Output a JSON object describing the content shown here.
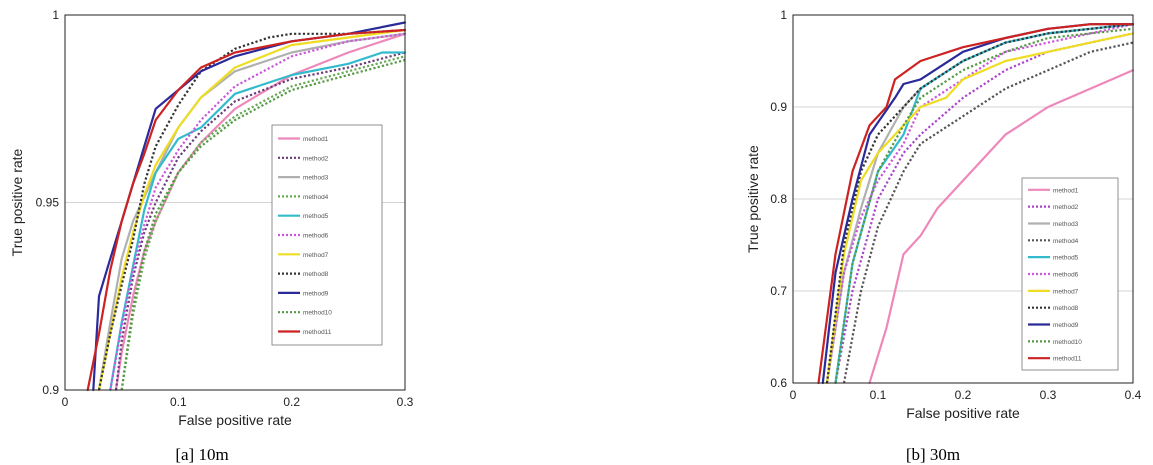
{
  "chart_data": [
    {
      "type": "line",
      "panel": "a",
      "caption": "[a] 10m",
      "xlabel": "False positive rate",
      "ylabel": "True positive rate",
      "xlim": [
        0,
        0.3
      ],
      "ylim": [
        0.9,
        1
      ],
      "xticks": [
        0,
        0.1,
        0.2,
        0.3
      ],
      "xtick_labels": [
        "0",
        "0.1",
        "0.2",
        "0.3"
      ],
      "yticks": [
        0.9,
        0.95,
        1
      ],
      "ytick_labels": [
        "0.9",
        "0.95",
        "1"
      ],
      "grid": "horizontal",
      "legend": "right",
      "series": [
        {
          "name": "method1",
          "color": "#ee88bb",
          "dash": "solid",
          "x": [
            0.045,
            0.05,
            0.06,
            0.07,
            0.08,
            0.1,
            0.12,
            0.15,
            0.2,
            0.25,
            0.3
          ],
          "y": [
            0.9,
            0.91,
            0.925,
            0.937,
            0.945,
            0.958,
            0.966,
            0.975,
            0.984,
            0.99,
            0.995
          ]
        },
        {
          "name": "method2",
          "color": "#6a3d7a",
          "dash": "dotted",
          "x": [
            0.045,
            0.05,
            0.06,
            0.07,
            0.08,
            0.1,
            0.12,
            0.15,
            0.2,
            0.25,
            0.3
          ],
          "y": [
            0.9,
            0.913,
            0.93,
            0.942,
            0.95,
            0.962,
            0.969,
            0.977,
            0.983,
            0.986,
            0.99
          ]
        },
        {
          "name": "method3",
          "color": "#b0b0b0",
          "dash": "solid",
          "x": [
            0.03,
            0.04,
            0.05,
            0.06,
            0.08,
            0.1,
            0.12,
            0.15,
            0.2,
            0.25,
            0.3
          ],
          "y": [
            0.9,
            0.918,
            0.935,
            0.945,
            0.958,
            0.97,
            0.978,
            0.985,
            0.99,
            0.993,
            0.995
          ]
        },
        {
          "name": "method4",
          "color": "#66aa55",
          "dash": "dotted",
          "x": [
            0.05,
            0.06,
            0.07,
            0.08,
            0.1,
            0.12,
            0.15,
            0.2,
            0.25,
            0.3
          ],
          "y": [
            0.9,
            0.92,
            0.935,
            0.945,
            0.958,
            0.966,
            0.973,
            0.981,
            0.985,
            0.989
          ]
        },
        {
          "name": "method5",
          "color": "#33bbcc",
          "dash": "solid",
          "x": [
            0.04,
            0.05,
            0.06,
            0.07,
            0.08,
            0.1,
            0.12,
            0.15,
            0.2,
            0.25,
            0.28,
            0.3
          ],
          "y": [
            0.9,
            0.918,
            0.933,
            0.948,
            0.958,
            0.967,
            0.97,
            0.979,
            0.984,
            0.987,
            0.99,
            0.99
          ]
        },
        {
          "name": "method6",
          "color": "#cc55dd",
          "dash": "dotted",
          "x": [
            0.04,
            0.05,
            0.06,
            0.07,
            0.08,
            0.1,
            0.12,
            0.15,
            0.2,
            0.25,
            0.3
          ],
          "y": [
            0.9,
            0.917,
            0.932,
            0.944,
            0.954,
            0.964,
            0.972,
            0.981,
            0.989,
            0.993,
            0.995
          ]
        },
        {
          "name": "method7",
          "color": "#eedd22",
          "dash": "solid",
          "x": [
            0.03,
            0.04,
            0.05,
            0.06,
            0.07,
            0.08,
            0.1,
            0.12,
            0.15,
            0.2,
            0.25,
            0.3
          ],
          "y": [
            0.9,
            0.915,
            0.93,
            0.942,
            0.952,
            0.96,
            0.97,
            0.978,
            0.986,
            0.992,
            0.994,
            0.996
          ]
        },
        {
          "name": "method8",
          "color": "#333333",
          "dash": "dotted",
          "x": [
            0.03,
            0.04,
            0.05,
            0.06,
            0.07,
            0.08,
            0.1,
            0.12,
            0.15,
            0.18,
            0.2,
            0.25,
            0.3
          ],
          "y": [
            0.9,
            0.915,
            0.928,
            0.94,
            0.955,
            0.965,
            0.976,
            0.985,
            0.991,
            0.994,
            0.995,
            0.995,
            0.996
          ]
        },
        {
          "name": "method9",
          "color": "#2a2a99",
          "dash": "solid",
          "x": [
            0.025,
            0.03,
            0.04,
            0.05,
            0.06,
            0.07,
            0.08,
            0.1,
            0.12,
            0.15,
            0.2,
            0.25,
            0.3
          ],
          "y": [
            0.9,
            0.925,
            0.935,
            0.945,
            0.955,
            0.965,
            0.975,
            0.98,
            0.985,
            0.989,
            0.993,
            0.995,
            0.998
          ]
        },
        {
          "name": "method10",
          "color": "#559944",
          "dash": "dotted",
          "x": [
            0.05,
            0.06,
            0.07,
            0.08,
            0.1,
            0.12,
            0.15,
            0.2,
            0.25,
            0.3
          ],
          "y": [
            0.9,
            0.922,
            0.937,
            0.947,
            0.958,
            0.965,
            0.972,
            0.98,
            0.984,
            0.988
          ]
        },
        {
          "name": "method11",
          "color": "#cc2222",
          "dash": "solid",
          "x": [
            0.02,
            0.03,
            0.04,
            0.05,
            0.06,
            0.07,
            0.08,
            0.1,
            0.12,
            0.15,
            0.2,
            0.25,
            0.3
          ],
          "y": [
            0.9,
            0.915,
            0.932,
            0.945,
            0.955,
            0.963,
            0.972,
            0.98,
            0.986,
            0.99,
            0.993,
            0.995,
            0.996
          ]
        }
      ]
    },
    {
      "type": "line",
      "panel": "b",
      "caption": "[b] 30m",
      "xlabel": "False positive rate",
      "ylabel": "True positive rate",
      "xlim": [
        0,
        0.4
      ],
      "ylim": [
        0.6,
        1
      ],
      "xticks": [
        0,
        0.1,
        0.2,
        0.3,
        0.4
      ],
      "xtick_labels": [
        "0",
        "0.1",
        "0.2",
        "0.3",
        "0.4"
      ],
      "yticks": [
        0.6,
        0.7,
        0.8,
        0.9,
        1
      ],
      "ytick_labels": [
        "0.6",
        "0.7",
        "0.8",
        "0.9",
        "1"
      ],
      "grid": "horizontal",
      "legend": "right",
      "series": [
        {
          "name": "method1",
          "color": "#ee88bb",
          "dash": "solid",
          "x": [
            0.09,
            0.11,
            0.13,
            0.15,
            0.17,
            0.2,
            0.25,
            0.3,
            0.35,
            0.4
          ],
          "y": [
            0.6,
            0.66,
            0.74,
            0.76,
            0.79,
            0.82,
            0.87,
            0.9,
            0.92,
            0.94
          ]
        },
        {
          "name": "method2",
          "color": "#aa44cc",
          "dash": "dotted",
          "x": [
            0.05,
            0.07,
            0.1,
            0.13,
            0.15,
            0.2,
            0.25,
            0.3,
            0.35,
            0.4
          ],
          "y": [
            0.6,
            0.7,
            0.8,
            0.85,
            0.87,
            0.91,
            0.94,
            0.96,
            0.97,
            0.98
          ]
        },
        {
          "name": "method3",
          "color": "#b0b0b0",
          "dash": "solid",
          "x": [
            0.04,
            0.06,
            0.08,
            0.1,
            0.13,
            0.15,
            0.2,
            0.25,
            0.3,
            0.35,
            0.4
          ],
          "y": [
            0.6,
            0.72,
            0.79,
            0.85,
            0.9,
            0.92,
            0.95,
            0.97,
            0.98,
            0.985,
            0.99
          ]
        },
        {
          "name": "method4",
          "color": "#555555",
          "dash": "dotted",
          "x": [
            0.06,
            0.08,
            0.1,
            0.13,
            0.15,
            0.2,
            0.25,
            0.3,
            0.35,
            0.4
          ],
          "y": [
            0.6,
            0.7,
            0.77,
            0.83,
            0.86,
            0.89,
            0.92,
            0.94,
            0.96,
            0.97
          ]
        },
        {
          "name": "method5",
          "color": "#33bbcc",
          "dash": "solid",
          "x": [
            0.05,
            0.07,
            0.1,
            0.13,
            0.15,
            0.2,
            0.25,
            0.3,
            0.35,
            0.4
          ],
          "y": [
            0.6,
            0.73,
            0.83,
            0.87,
            0.92,
            0.95,
            0.97,
            0.98,
            0.985,
            0.99
          ]
        },
        {
          "name": "method6",
          "color": "#cc55dd",
          "dash": "dotted",
          "x": [
            0.04,
            0.06,
            0.08,
            0.1,
            0.13,
            0.15,
            0.2,
            0.25,
            0.3,
            0.35,
            0.4
          ],
          "y": [
            0.6,
            0.72,
            0.78,
            0.82,
            0.86,
            0.9,
            0.93,
            0.96,
            0.97,
            0.98,
            0.99
          ]
        },
        {
          "name": "method7",
          "color": "#eedd22",
          "dash": "solid",
          "x": [
            0.04,
            0.06,
            0.08,
            0.1,
            0.13,
            0.15,
            0.18,
            0.2,
            0.25,
            0.3,
            0.35,
            0.4
          ],
          "y": [
            0.6,
            0.74,
            0.82,
            0.85,
            0.88,
            0.9,
            0.91,
            0.93,
            0.95,
            0.96,
            0.97,
            0.98
          ]
        },
        {
          "name": "method8",
          "color": "#333333",
          "dash": "dotted",
          "x": [
            0.04,
            0.06,
            0.08,
            0.1,
            0.13,
            0.15,
            0.2,
            0.25,
            0.3,
            0.35,
            0.4
          ],
          "y": [
            0.6,
            0.75,
            0.83,
            0.87,
            0.9,
            0.92,
            0.95,
            0.97,
            0.98,
            0.985,
            0.99
          ]
        },
        {
          "name": "method9",
          "color": "#2a2a99",
          "dash": "solid",
          "x": [
            0.035,
            0.05,
            0.07,
            0.09,
            0.12,
            0.13,
            0.15,
            0.2,
            0.25,
            0.3,
            0.35,
            0.4
          ],
          "y": [
            0.6,
            0.72,
            0.8,
            0.87,
            0.91,
            0.925,
            0.93,
            0.96,
            0.975,
            0.985,
            0.99,
            0.99
          ]
        },
        {
          "name": "method10",
          "color": "#559944",
          "dash": "dotted",
          "x": [
            0.05,
            0.07,
            0.1,
            0.13,
            0.15,
            0.2,
            0.25,
            0.3,
            0.35,
            0.4
          ],
          "y": [
            0.6,
            0.73,
            0.83,
            0.88,
            0.91,
            0.94,
            0.96,
            0.975,
            0.98,
            0.985
          ]
        },
        {
          "name": "method11",
          "color": "#cc2222",
          "dash": "solid",
          "x": [
            0.03,
            0.05,
            0.07,
            0.09,
            0.11,
            0.12,
            0.15,
            0.2,
            0.25,
            0.3,
            0.35,
            0.4
          ],
          "y": [
            0.6,
            0.74,
            0.83,
            0.88,
            0.9,
            0.93,
            0.95,
            0.965,
            0.975,
            0.985,
            0.99,
            0.99
          ]
        }
      ]
    }
  ]
}
